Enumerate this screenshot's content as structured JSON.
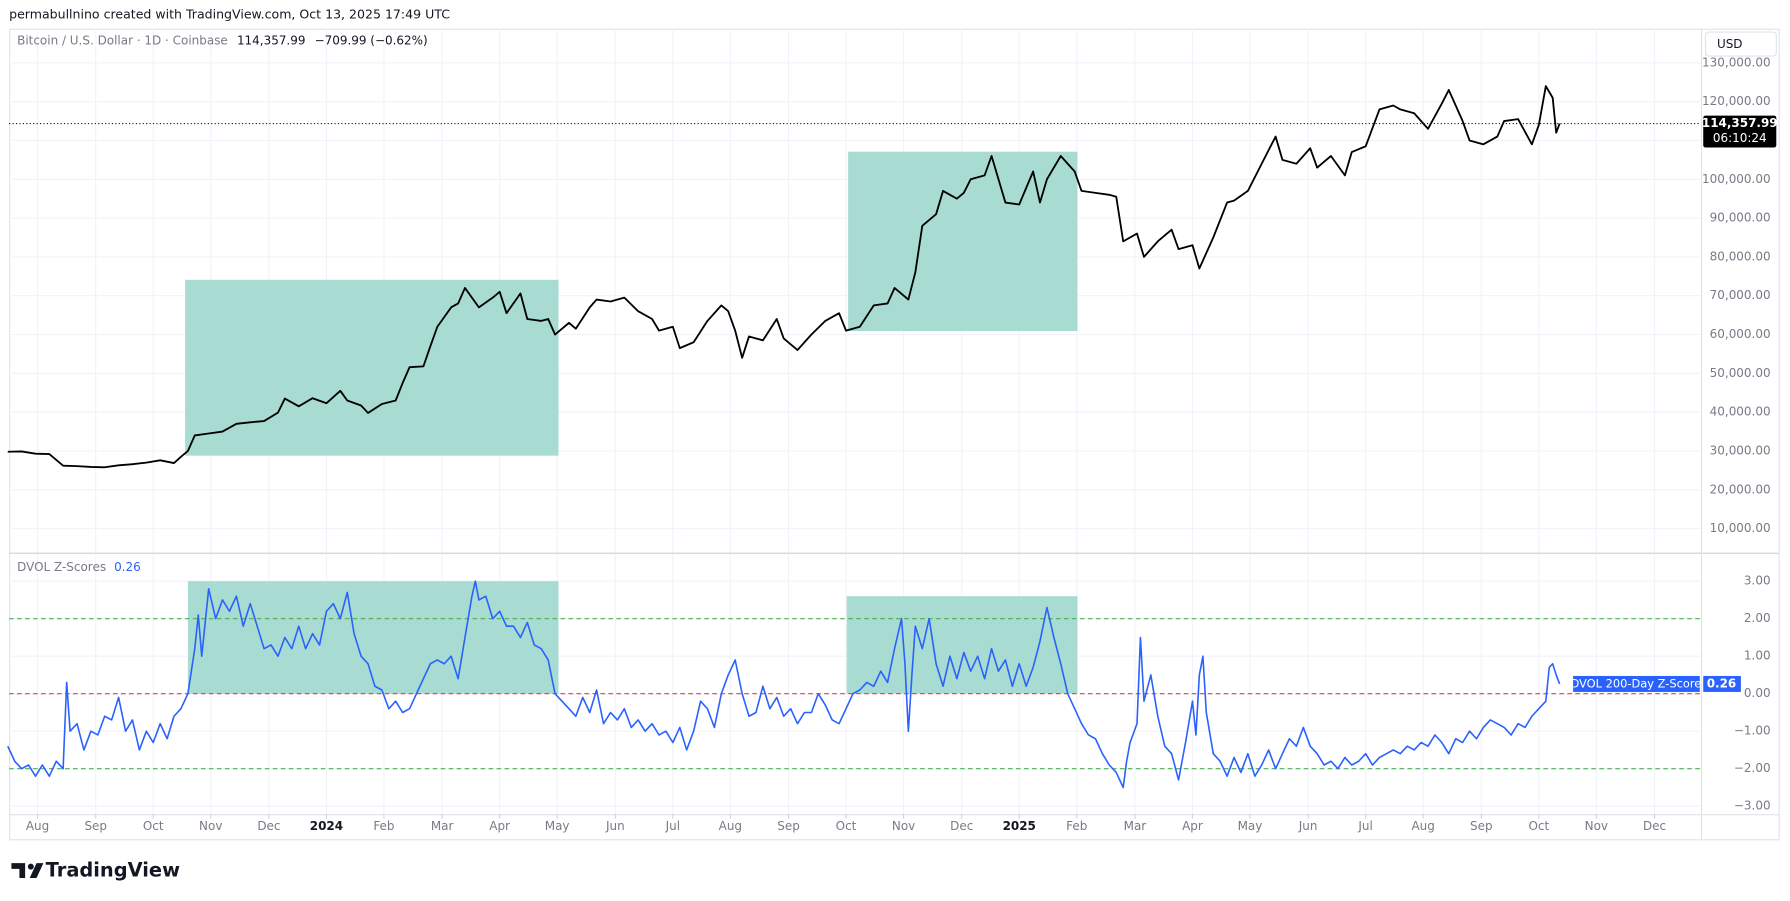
{
  "header": "permabullnino created with TradingView.com, Oct 13, 2025 17:49 UTC",
  "logo": "TradingView",
  "currency": "USD",
  "chart_data": [
    {
      "type": "line",
      "title": "Bitcoin / U.S. Dollar · 1D · Coinbase",
      "last_value": {
        "value": 114357.99,
        "label": "114,357.99"
      },
      "change": "−709.99 (−0.62%)",
      "countdown": "06:10:24",
      "x": [
        2023.54,
        2023.56,
        2023.58,
        2023.6,
        2023.62,
        2023.64,
        2023.66,
        2023.68,
        2023.7,
        2023.72,
        2023.74,
        2023.76,
        2023.78,
        2023.79,
        2023.8,
        2023.81,
        2023.83,
        2023.85,
        2023.87,
        2023.89,
        2023.91,
        2023.93,
        2023.94,
        2023.96,
        2023.98,
        2024.0,
        2024.02,
        2024.03,
        2024.05,
        2024.06,
        2024.08,
        2024.1,
        2024.11,
        2024.12,
        2024.14,
        2024.15,
        2024.16,
        2024.18,
        2024.19,
        2024.2,
        2024.22,
        2024.24,
        2024.25,
        2024.26,
        2024.28,
        2024.29,
        2024.31,
        2024.32,
        2024.33,
        2024.35,
        2024.36,
        2024.38,
        2024.39,
        2024.41,
        2024.43,
        2024.45,
        2024.47,
        2024.48,
        2024.5,
        2024.51,
        2024.53,
        2024.55,
        2024.57,
        2024.58,
        2024.59,
        2024.6,
        2024.61,
        2024.63,
        2024.65,
        2024.66,
        2024.68,
        2024.7,
        2024.72,
        2024.74,
        2024.75,
        2024.77,
        2024.79,
        2024.81,
        2024.82,
        2024.84,
        2024.85,
        2024.86,
        2024.88,
        2024.89,
        2024.91,
        2024.92,
        2024.93,
        2024.95,
        2024.96,
        2024.98,
        2025.0,
        2025.02,
        2025.03,
        2025.04,
        2025.06,
        2025.07,
        2025.08,
        2025.09,
        2025.11,
        2025.13,
        2025.14,
        2025.15,
        2025.17,
        2025.18,
        2025.2,
        2025.22,
        2025.23,
        2025.25,
        2025.26,
        2025.28,
        2025.3,
        2025.31,
        2025.33,
        2025.35,
        2025.37,
        2025.38,
        2025.4,
        2025.42,
        2025.43,
        2025.45,
        2025.47,
        2025.48,
        2025.5,
        2025.52,
        2025.54,
        2025.55,
        2025.57,
        2025.59,
        2025.61,
        2025.62,
        2025.64,
        2025.65,
        2025.67,
        2025.69,
        2025.7,
        2025.72,
        2025.74,
        2025.75,
        2025.76,
        2025.77,
        2025.775,
        2025.78
      ],
      "series": [
        {
          "name": "Bitcoin / U.S. Dollar",
          "color": "#000000",
          "values": [
            29800,
            29900,
            29300,
            29200,
            26200,
            26100,
            25900,
            25800,
            26300,
            26600,
            27000,
            27600,
            26900,
            28500,
            30000,
            34000,
            34500,
            35000,
            37000,
            37400,
            37700,
            39900,
            43500,
            41500,
            43600,
            42300,
            45500,
            43000,
            41700,
            39800,
            42100,
            43000,
            47500,
            51600,
            51800,
            57000,
            62000,
            67000,
            68000,
            72000,
            67000,
            69500,
            71000,
            65500,
            70600,
            64000,
            63500,
            64000,
            60000,
            63000,
            61500,
            67000,
            69000,
            68500,
            69500,
            66000,
            64000,
            61000,
            62000,
            56500,
            58000,
            63500,
            67500,
            66000,
            61000,
            54000,
            59500,
            58500,
            64000,
            59000,
            56000,
            60000,
            63500,
            65500,
            61000,
            62000,
            67500,
            68000,
            72000,
            69000,
            76000,
            88000,
            91000,
            97000,
            95000,
            96500,
            100000,
            101000,
            106000,
            94000,
            93500,
            102000,
            94000,
            100000,
            106000,
            104000,
            102000,
            97000,
            96500,
            96000,
            95500,
            84000,
            86000,
            80000,
            84000,
            87000,
            82000,
            83000,
            77000,
            85000,
            94000,
            94500,
            97000,
            104000,
            111000,
            105000,
            104000,
            108000,
            103000,
            106000,
            101000,
            107000,
            108500,
            118000,
            119000,
            118000,
            117000,
            113000,
            119500,
            123000,
            115000,
            110000,
            109000,
            111000,
            115000,
            115500,
            109000,
            114000,
            124000,
            121000,
            112000,
            114357.99
          ]
        }
      ],
      "box_color": "#a8dbd1",
      "boxes": [
        {
          "x": [
            2023.796,
            2024.335
          ],
          "y": [
            28800,
            74100
          ]
        },
        {
          "x": [
            2024.753,
            2025.084
          ],
          "y": [
            60900,
            107100
          ]
        }
      ],
      "xlim": [
        2023.542,
        2025.984
      ],
      "ylim": [
        3800,
        138800
      ],
      "yticks": [
        {
          "value": 10000,
          "label": "10,000.00"
        },
        {
          "value": 20000,
          "label": "20,000.00"
        },
        {
          "value": 30000,
          "label": "30,000.00"
        },
        {
          "value": 40000,
          "label": "40,000.00"
        },
        {
          "value": 50000,
          "label": "50,000.00"
        },
        {
          "value": 60000,
          "label": "60,000.00"
        },
        {
          "value": 70000,
          "label": "70,000.00"
        },
        {
          "value": 80000,
          "label": "80,000.00"
        },
        {
          "value": 90000,
          "label": "90,000.00"
        },
        {
          "value": 100000,
          "label": "100,000.00"
        },
        {
          "value": 110000,
          "label": "110,000.00"
        },
        {
          "value": 120000,
          "label": "120,000.00"
        },
        {
          "value": 130000,
          "label": "130,000.00"
        }
      ],
      "grid": true
    },
    {
      "type": "line",
      "title": "DVOL Z-Scores",
      "tag_label": "DVOL 200-Day Z-Score",
      "last_value": 0.26,
      "x": [
        2023.54,
        2023.55,
        2023.56,
        2023.57,
        2023.58,
        2023.59,
        2023.6,
        2023.61,
        2023.62,
        2023.625,
        2023.63,
        2023.64,
        2023.65,
        2023.66,
        2023.67,
        2023.68,
        2023.69,
        2023.7,
        2023.71,
        2023.72,
        2023.73,
        2023.74,
        2023.75,
        2023.76,
        2023.77,
        2023.78,
        2023.79,
        2023.8,
        2023.81,
        2023.815,
        2023.82,
        2023.83,
        2023.84,
        2023.85,
        2023.86,
        2023.87,
        2023.88,
        2023.89,
        2023.9,
        2023.91,
        2023.92,
        2023.93,
        2023.94,
        2023.95,
        2023.96,
        2023.97,
        2023.98,
        2023.99,
        2024.0,
        2024.01,
        2024.02,
        2024.03,
        2024.04,
        2024.05,
        2024.06,
        2024.07,
        2024.08,
        2024.09,
        2024.1,
        2024.11,
        2024.12,
        2024.13,
        2024.14,
        2024.15,
        2024.16,
        2024.17,
        2024.18,
        2024.19,
        2024.2,
        2024.21,
        2024.215,
        2024.22,
        2024.23,
        2024.24,
        2024.25,
        2024.26,
        2024.27,
        2024.28,
        2024.29,
        2024.3,
        2024.31,
        2024.32,
        2024.33,
        2024.34,
        2024.35,
        2024.36,
        2024.37,
        2024.38,
        2024.39,
        2024.4,
        2024.41,
        2024.42,
        2024.43,
        2024.44,
        2024.45,
        2024.46,
        2024.47,
        2024.48,
        2024.49,
        2024.5,
        2024.51,
        2024.52,
        2024.53,
        2024.54,
        2024.55,
        2024.56,
        2024.57,
        2024.58,
        2024.59,
        2024.6,
        2024.61,
        2024.62,
        2024.63,
        2024.64,
        2024.65,
        2024.66,
        2024.67,
        2024.68,
        2024.69,
        2024.7,
        2024.71,
        2024.72,
        2024.73,
        2024.74,
        2024.75,
        2024.76,
        2024.77,
        2024.78,
        2024.79,
        2024.8,
        2024.81,
        2024.82,
        2024.83,
        2024.835,
        2024.84,
        2024.845,
        2024.85,
        2024.86,
        2024.87,
        2024.88,
        2024.89,
        2024.9,
        2024.91,
        2024.92,
        2024.93,
        2024.94,
        2024.95,
        2024.96,
        2024.97,
        2024.98,
        2024.99,
        2025.0,
        2025.01,
        2025.02,
        2025.03,
        2025.04,
        2025.05,
        2025.06,
        2025.07,
        2025.08,
        2025.09,
        2025.1,
        2025.11,
        2025.12,
        2025.13,
        2025.14,
        2025.15,
        2025.155,
        2025.16,
        2025.17,
        2025.175,
        2025.18,
        2025.19,
        2025.2,
        2025.21,
        2025.22,
        2025.23,
        2025.24,
        2025.25,
        2025.255,
        2025.26,
        2025.265,
        2025.27,
        2025.28,
        2025.29,
        2025.3,
        2025.31,
        2025.32,
        2025.33,
        2025.34,
        2025.35,
        2025.36,
        2025.37,
        2025.38,
        2025.39,
        2025.4,
        2025.41,
        2025.42,
        2025.43,
        2025.44,
        2025.45,
        2025.46,
        2025.47,
        2025.48,
        2025.49,
        2025.5,
        2025.51,
        2025.52,
        2025.53,
        2025.54,
        2025.55,
        2025.56,
        2025.57,
        2025.58,
        2025.59,
        2025.6,
        2025.61,
        2025.62,
        2025.63,
        2025.64,
        2025.65,
        2025.66,
        2025.67,
        2025.68,
        2025.69,
        2025.7,
        2025.71,
        2025.72,
        2025.73,
        2025.74,
        2025.75,
        2025.76,
        2025.765,
        2025.77,
        2025.775,
        2025.78
      ],
      "series": [
        {
          "name": "DVOL 200-Day Z-Score",
          "color": "#2962ff",
          "values": [
            -1.4,
            -1.8,
            -2.0,
            -1.9,
            -2.2,
            -1.9,
            -2.2,
            -1.8,
            -2.0,
            0.3,
            -1.0,
            -0.8,
            -1.5,
            -1.0,
            -1.1,
            -0.6,
            -0.7,
            -0.1,
            -1.0,
            -0.7,
            -1.5,
            -1.0,
            -1.3,
            -0.8,
            -1.2,
            -0.6,
            -0.4,
            0.0,
            1.2,
            2.1,
            1.0,
            2.8,
            2.0,
            2.5,
            2.2,
            2.6,
            1.8,
            2.4,
            1.8,
            1.2,
            1.3,
            1.0,
            1.5,
            1.2,
            1.8,
            1.2,
            1.6,
            1.3,
            2.2,
            2.4,
            2.0,
            2.7,
            1.6,
            1.0,
            0.8,
            0.2,
            0.1,
            -0.4,
            -0.2,
            -0.5,
            -0.4,
            0.0,
            0.4,
            0.8,
            0.9,
            0.8,
            1.0,
            0.4,
            1.5,
            2.6,
            3.0,
            2.5,
            2.6,
            2.0,
            2.2,
            1.8,
            1.8,
            1.5,
            1.9,
            1.3,
            1.2,
            0.9,
            0.0,
            -0.2,
            -0.4,
            -0.6,
            -0.1,
            -0.5,
            0.1,
            -0.8,
            -0.5,
            -0.7,
            -0.4,
            -0.9,
            -0.7,
            -1.0,
            -0.8,
            -1.1,
            -1.0,
            -1.3,
            -0.9,
            -1.5,
            -1.0,
            -0.2,
            -0.4,
            -0.9,
            0.0,
            0.5,
            0.9,
            0.0,
            -0.6,
            -0.5,
            0.2,
            -0.4,
            -0.1,
            -0.6,
            -0.4,
            -0.8,
            -0.5,
            -0.5,
            0.0,
            -0.3,
            -0.7,
            -0.8,
            -0.4,
            0.0,
            0.1,
            0.3,
            0.2,
            0.6,
            0.3,
            1.2,
            2.0,
            0.8,
            -1.0,
            0.5,
            1.8,
            1.2,
            2.0,
            0.8,
            0.2,
            1.0,
            0.4,
            1.1,
            0.6,
            1.0,
            0.4,
            1.2,
            0.6,
            0.9,
            0.2,
            0.8,
            0.2,
            0.7,
            1.4,
            2.3,
            1.5,
            0.8,
            0.0,
            -0.4,
            -0.8,
            -1.1,
            -1.2,
            -1.6,
            -1.9,
            -2.1,
            -2.5,
            -1.8,
            -1.3,
            -0.8,
            1.5,
            -0.2,
            0.5,
            -0.6,
            -1.4,
            -1.6,
            -2.3,
            -1.3,
            -0.2,
            -1.1,
            0.5,
            1.0,
            -0.5,
            -1.6,
            -1.8,
            -2.2,
            -1.7,
            -2.1,
            -1.6,
            -2.2,
            -1.9,
            -1.5,
            -2.0,
            -1.6,
            -1.2,
            -1.4,
            -0.9,
            -1.4,
            -1.6,
            -1.9,
            -1.8,
            -2.0,
            -1.7,
            -1.9,
            -1.8,
            -1.6,
            -1.9,
            -1.7,
            -1.6,
            -1.5,
            -1.6,
            -1.4,
            -1.5,
            -1.3,
            -1.4,
            -1.1,
            -1.3,
            -1.6,
            -1.2,
            -1.3,
            -1.0,
            -1.2,
            -0.9,
            -0.7,
            -0.8,
            -0.9,
            -1.1,
            -0.8,
            -0.9,
            -0.6,
            -0.4,
            -0.2,
            0.7,
            0.8,
            0.5,
            0.26
          ]
        }
      ],
      "box_color": "#a8dbd1",
      "boxes": [
        {
          "x": [
            2023.8,
            2024.335
          ],
          "y": [
            0,
            3
          ]
        },
        {
          "x": [
            2024.751,
            2025.084
          ],
          "y": [
            0,
            2.6
          ]
        }
      ],
      "hlines": [
        {
          "value": 2,
          "color": "#4caf50"
        },
        {
          "value": 0,
          "color": "#f23645"
        },
        {
          "value": -2,
          "color": "#4caf50"
        }
      ],
      "xlim": [
        2023.542,
        2025.984
      ],
      "xticks": [
        {
          "value": 2023.583,
          "label": "Aug"
        },
        {
          "value": 2023.667,
          "label": "Sep"
        },
        {
          "value": 2023.75,
          "label": "Oct"
        },
        {
          "value": 2023.833,
          "label": "Nov"
        },
        {
          "value": 2023.917,
          "label": "Dec"
        },
        2024,
        {
          "value": 2024.083,
          "label": "Feb"
        },
        {
          "value": 2024.167,
          "label": "Mar"
        },
        {
          "value": 2024.25,
          "label": "Apr"
        },
        {
          "value": 2024.333,
          "label": "May"
        },
        {
          "value": 2024.417,
          "label": "Jun"
        },
        {
          "value": 2024.5,
          "label": "Jul"
        },
        {
          "value": 2024.583,
          "label": "Aug"
        },
        {
          "value": 2024.667,
          "label": "Sep"
        },
        {
          "value": 2024.75,
          "label": "Oct"
        },
        {
          "value": 2024.833,
          "label": "Nov"
        },
        {
          "value": 2024.917,
          "label": "Dec"
        },
        2025,
        {
          "value": 2025.083,
          "label": "Feb"
        },
        {
          "value": 2025.167,
          "label": "Mar"
        },
        {
          "value": 2025.25,
          "label": "Apr"
        },
        {
          "value": 2025.333,
          "label": "May"
        },
        {
          "value": 2025.417,
          "label": "Jun"
        },
        {
          "value": 2025.5,
          "label": "Jul"
        },
        {
          "value": 2025.583,
          "label": "Aug"
        },
        {
          "value": 2025.667,
          "label": "Sep"
        },
        {
          "value": 2025.75,
          "label": "Oct"
        },
        {
          "value": 2025.833,
          "label": "Nov"
        },
        {
          "value": 2025.917,
          "label": "Dec"
        }
      ],
      "ylim": [
        -3.21,
        3.73
      ],
      "yticks": [
        {
          "value": 3,
          "label": "3.00"
        },
        {
          "value": 2,
          "label": "2.00"
        },
        {
          "value": 1,
          "label": "1.00"
        },
        {
          "value": 0,
          "label": "0.00"
        },
        {
          "value": -1,
          "label": "−1.00"
        },
        {
          "value": -2,
          "label": "−2.00"
        },
        {
          "value": -3,
          "label": "−3.00"
        }
      ],
      "grid": true
    }
  ]
}
